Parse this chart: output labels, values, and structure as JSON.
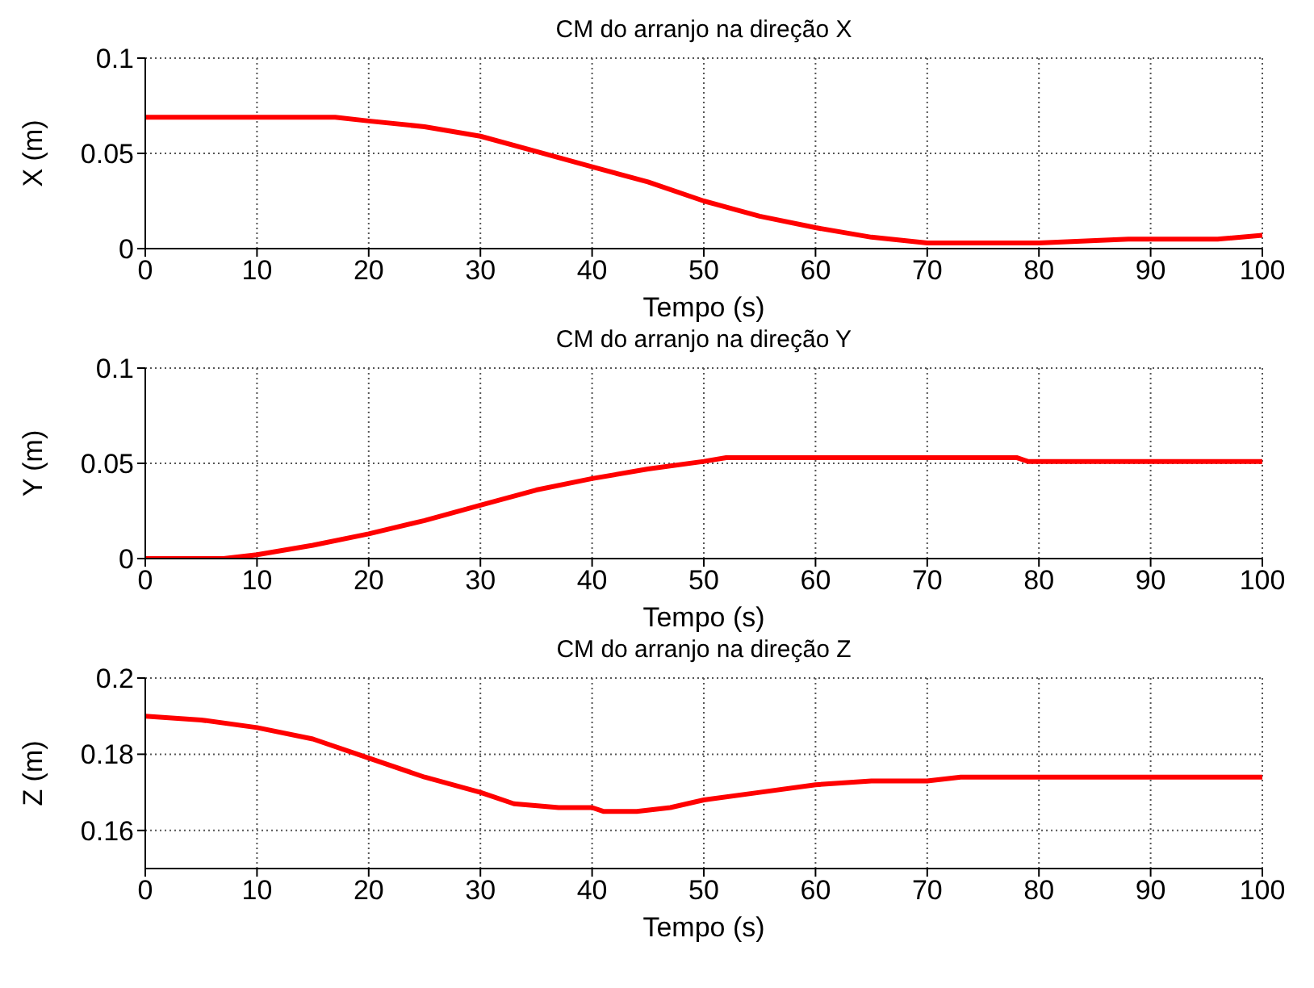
{
  "chart_data": [
    {
      "type": "line",
      "title": "CM do arranjo na direção X",
      "xlabel": "Tempo (s)",
      "ylabel": "X (m)",
      "xlim": [
        0,
        100
      ],
      "xticks": [
        0,
        10,
        20,
        30,
        40,
        50,
        60,
        70,
        80,
        90,
        100
      ],
      "ylim": [
        0,
        0.1
      ],
      "yticks": [
        0,
        0.05,
        0.1
      ],
      "grid": true,
      "marker": "none",
      "line_style": "solid",
      "series": [
        {
          "color": "#ff0000",
          "x": [
            0,
            17,
            20,
            25,
            30,
            35,
            40,
            45,
            50,
            55,
            60,
            65,
            70,
            80,
            88,
            96,
            100
          ],
          "values": [
            0.069,
            0.069,
            0.067,
            0.064,
            0.059,
            0.051,
            0.043,
            0.035,
            0.025,
            0.017,
            0.011,
            0.006,
            0.003,
            0.003,
            0.005,
            0.005,
            0.007
          ]
        }
      ]
    },
    {
      "type": "line",
      "title": "CM do arranjo na direção Y",
      "xlabel": "Tempo (s)",
      "ylabel": "Y (m)",
      "xlim": [
        0,
        100
      ],
      "xticks": [
        0,
        10,
        20,
        30,
        40,
        50,
        60,
        70,
        80,
        90,
        100
      ],
      "ylim": [
        0,
        0.1
      ],
      "yticks": [
        0,
        0.05,
        0.1
      ],
      "grid": true,
      "marker": "none",
      "line_style": "solid",
      "series": [
        {
          "color": "#ff0000",
          "x": [
            0,
            7,
            10,
            15,
            20,
            25,
            30,
            35,
            40,
            45,
            50,
            52,
            78,
            79,
            100
          ],
          "values": [
            0,
            0,
            0.002,
            0.007,
            0.013,
            0.02,
            0.028,
            0.036,
            0.042,
            0.047,
            0.051,
            0.053,
            0.053,
            0.051,
            0.051
          ]
        }
      ]
    },
    {
      "type": "line",
      "title": "CM do arranjo na direção Z",
      "xlabel": "Tempo (s)",
      "ylabel": "Z (m)",
      "xlim": [
        0,
        100
      ],
      "xticks": [
        0,
        10,
        20,
        30,
        40,
        50,
        60,
        70,
        80,
        90,
        100
      ],
      "ylim": [
        0.15,
        0.2
      ],
      "yticks": [
        0.16,
        0.18,
        0.2
      ],
      "grid": true,
      "marker": "none",
      "line_style": "solid",
      "series": [
        {
          "color": "#ff0000",
          "x": [
            0,
            5,
            10,
            15,
            20,
            25,
            30,
            33,
            37,
            40,
            41,
            44,
            47,
            50,
            55,
            60,
            65,
            70,
            73,
            100
          ],
          "values": [
            0.19,
            0.189,
            0.187,
            0.184,
            0.179,
            0.174,
            0.17,
            0.167,
            0.166,
            0.166,
            0.165,
            0.165,
            0.166,
            0.168,
            0.17,
            0.172,
            0.173,
            0.173,
            0.174,
            0.174
          ]
        }
      ]
    }
  ]
}
